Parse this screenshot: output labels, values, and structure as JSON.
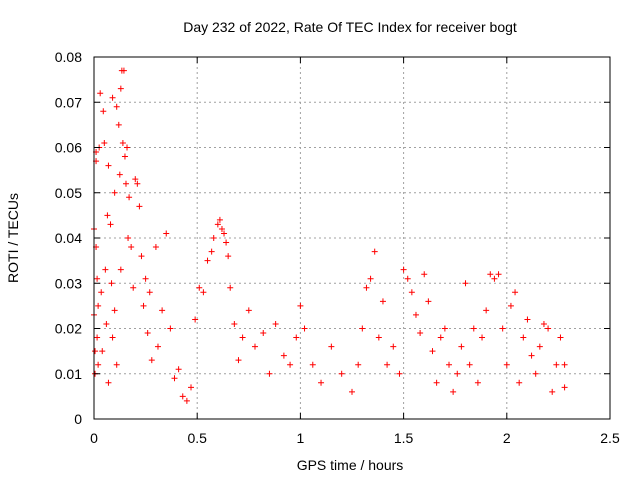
{
  "chart_data": {
    "type": "scatter",
    "title": "Day 232 of 2022, Rate Of TEC Index for receiver bogt",
    "xlabel": "GPS time / hours",
    "ylabel": "ROTI / TECUs",
    "xlim": [
      0,
      2.5
    ],
    "ylim": [
      0,
      0.08
    ],
    "xticks": [
      0,
      0.5,
      1,
      1.5,
      2,
      2.5
    ],
    "xtick_labels": [
      "0",
      "0.5",
      "1",
      "1.5",
      "2",
      "2.5"
    ],
    "yticks": [
      0,
      0.01,
      0.02,
      0.03,
      0.04,
      0.05,
      0.06,
      0.07,
      0.08
    ],
    "ytick_labels": [
      "0",
      "0.01",
      "0.02",
      "0.03",
      "0.04",
      "0.05",
      "0.06",
      "0.07",
      "0.08"
    ],
    "grid": true,
    "marker": "+",
    "color": "#ff0000",
    "series": [
      {
        "points": [
          [
            0.0,
            0.042
          ],
          [
            0.0,
            0.023
          ],
          [
            0.005,
            0.015
          ],
          [
            0.005,
            0.01
          ],
          [
            0.01,
            0.059
          ],
          [
            0.01,
            0.057
          ],
          [
            0.01,
            0.038
          ],
          [
            0.015,
            0.031
          ],
          [
            0.015,
            0.018
          ],
          [
            0.02,
            0.025
          ],
          [
            0.02,
            0.012
          ],
          [
            0.025,
            0.06
          ],
          [
            0.03,
            0.072
          ],
          [
            0.035,
            0.028
          ],
          [
            0.04,
            0.015
          ],
          [
            0.045,
            0.068
          ],
          [
            0.05,
            0.061
          ],
          [
            0.055,
            0.033
          ],
          [
            0.06,
            0.021
          ],
          [
            0.065,
            0.045
          ],
          [
            0.07,
            0.056
          ],
          [
            0.07,
            0.008
          ],
          [
            0.08,
            0.043
          ],
          [
            0.085,
            0.03
          ],
          [
            0.09,
            0.071
          ],
          [
            0.09,
            0.018
          ],
          [
            0.1,
            0.05
          ],
          [
            0.1,
            0.024
          ],
          [
            0.11,
            0.069
          ],
          [
            0.11,
            0.012
          ],
          [
            0.12,
            0.065
          ],
          [
            0.125,
            0.054
          ],
          [
            0.13,
            0.073
          ],
          [
            0.13,
            0.033
          ],
          [
            0.135,
            0.077
          ],
          [
            0.14,
            0.061
          ],
          [
            0.145,
            0.077
          ],
          [
            0.15,
            0.058
          ],
          [
            0.155,
            0.052
          ],
          [
            0.16,
            0.06
          ],
          [
            0.165,
            0.04
          ],
          [
            0.17,
            0.049
          ],
          [
            0.18,
            0.038
          ],
          [
            0.19,
            0.029
          ],
          [
            0.2,
            0.053
          ],
          [
            0.21,
            0.052
          ],
          [
            0.22,
            0.047
          ],
          [
            0.23,
            0.036
          ],
          [
            0.24,
            0.025
          ],
          [
            0.25,
            0.031
          ],
          [
            0.26,
            0.019
          ],
          [
            0.27,
            0.028
          ],
          [
            0.28,
            0.013
          ],
          [
            0.3,
            0.038
          ],
          [
            0.31,
            0.016
          ],
          [
            0.33,
            0.024
          ],
          [
            0.35,
            0.041
          ],
          [
            0.37,
            0.02
          ],
          [
            0.39,
            0.009
          ],
          [
            0.41,
            0.011
          ],
          [
            0.43,
            0.005
          ],
          [
            0.45,
            0.004
          ],
          [
            0.47,
            0.007
          ],
          [
            0.49,
            0.022
          ],
          [
            0.51,
            0.029
          ],
          [
            0.53,
            0.028
          ],
          [
            0.55,
            0.035
          ],
          [
            0.57,
            0.037
          ],
          [
            0.58,
            0.04
          ],
          [
            0.6,
            0.043
          ],
          [
            0.61,
            0.044
          ],
          [
            0.62,
            0.042
          ],
          [
            0.63,
            0.041
          ],
          [
            0.64,
            0.039
          ],
          [
            0.65,
            0.036
          ],
          [
            0.66,
            0.029
          ],
          [
            0.68,
            0.021
          ],
          [
            0.7,
            0.013
          ],
          [
            0.72,
            0.018
          ],
          [
            0.75,
            0.024
          ],
          [
            0.78,
            0.016
          ],
          [
            0.82,
            0.019
          ],
          [
            0.85,
            0.01
          ],
          [
            0.88,
            0.021
          ],
          [
            0.92,
            0.014
          ],
          [
            0.95,
            0.012
          ],
          [
            0.98,
            0.018
          ],
          [
            1.0,
            0.025
          ],
          [
            1.02,
            0.02
          ],
          [
            1.06,
            0.012
          ],
          [
            1.1,
            0.008
          ],
          [
            1.15,
            0.016
          ],
          [
            1.2,
            0.01
          ],
          [
            1.25,
            0.006
          ],
          [
            1.28,
            0.012
          ],
          [
            1.3,
            0.02
          ],
          [
            1.32,
            0.029
          ],
          [
            1.34,
            0.031
          ],
          [
            1.36,
            0.037
          ],
          [
            1.38,
            0.018
          ],
          [
            1.4,
            0.026
          ],
          [
            1.42,
            0.012
          ],
          [
            1.45,
            0.016
          ],
          [
            1.48,
            0.01
          ],
          [
            1.5,
            0.033
          ],
          [
            1.52,
            0.031
          ],
          [
            1.54,
            0.028
          ],
          [
            1.56,
            0.023
          ],
          [
            1.58,
            0.019
          ],
          [
            1.6,
            0.032
          ],
          [
            1.62,
            0.026
          ],
          [
            1.64,
            0.015
          ],
          [
            1.66,
            0.008
          ],
          [
            1.68,
            0.018
          ],
          [
            1.7,
            0.02
          ],
          [
            1.72,
            0.012
          ],
          [
            1.74,
            0.006
          ],
          [
            1.76,
            0.01
          ],
          [
            1.78,
            0.016
          ],
          [
            1.8,
            0.03
          ],
          [
            1.82,
            0.012
          ],
          [
            1.84,
            0.02
          ],
          [
            1.86,
            0.008
          ],
          [
            1.88,
            0.018
          ],
          [
            1.9,
            0.024
          ],
          [
            1.92,
            0.032
          ],
          [
            1.94,
            0.031
          ],
          [
            1.96,
            0.032
          ],
          [
            1.98,
            0.02
          ],
          [
            2.0,
            0.012
          ],
          [
            2.02,
            0.025
          ],
          [
            2.04,
            0.028
          ],
          [
            2.06,
            0.008
          ],
          [
            2.08,
            0.018
          ],
          [
            2.1,
            0.022
          ],
          [
            2.12,
            0.014
          ],
          [
            2.14,
            0.01
          ],
          [
            2.16,
            0.016
          ],
          [
            2.18,
            0.021
          ],
          [
            2.2,
            0.02
          ],
          [
            2.22,
            0.006
          ],
          [
            2.24,
            0.012
          ],
          [
            2.26,
            0.018
          ],
          [
            2.28,
            0.012
          ],
          [
            2.28,
            0.007
          ]
        ]
      }
    ]
  }
}
